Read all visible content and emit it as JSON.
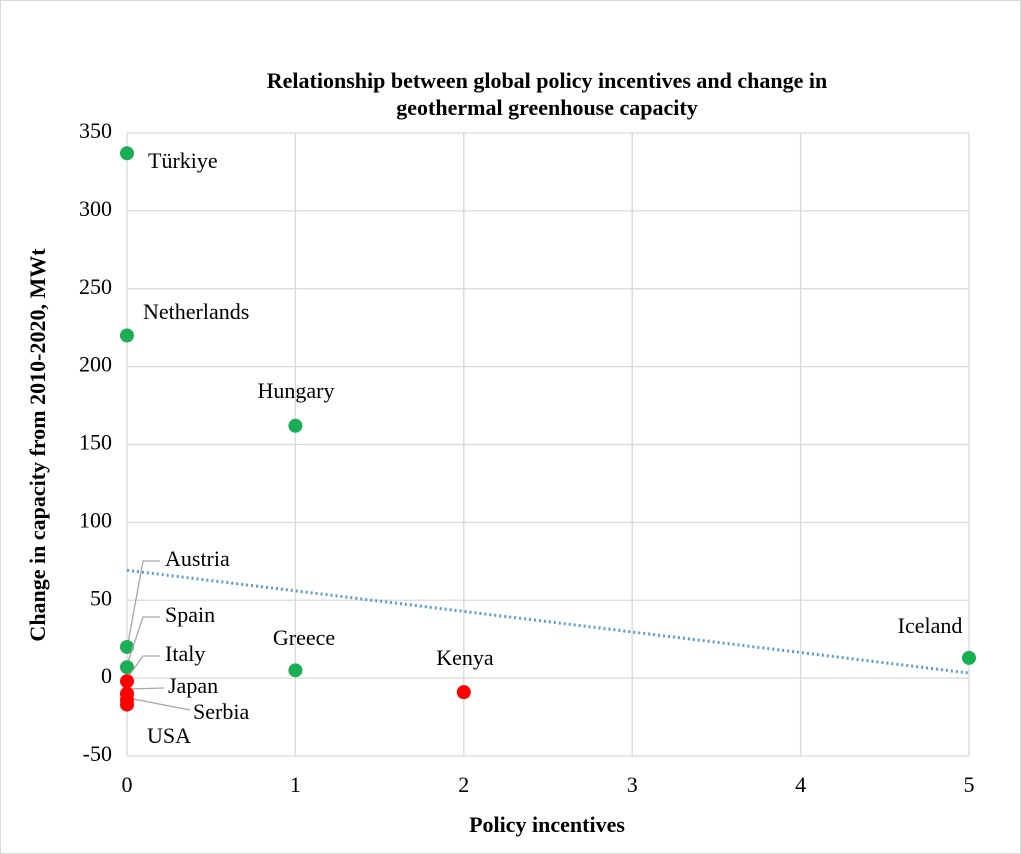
{
  "chart_data": {
    "type": "scatter",
    "title": "Relationship between global policy incentives and change in geothermal greenhouse capacity",
    "x_label": "Policy incentives",
    "y_label": "Change in capacity from 2010-2020, MWt",
    "labels": [
      "Türkiye",
      "Netherlands",
      "Hungary",
      "Austria",
      "Spain",
      "Italy",
      "Japan",
      "Serbia",
      "USA",
      "Greece",
      "Kenya",
      "Iceland"
    ],
    "x": [
      0,
      0,
      1,
      0,
      0,
      0,
      0,
      0,
      0,
      1,
      2,
      5
    ],
    "y": [
      337,
      220,
      162,
      20,
      7,
      -2,
      -10,
      -14,
      -17,
      5,
      -9,
      13
    ],
    "colors": [
      "#1aaf54",
      "#1aaf54",
      "#1aaf54",
      "#1aaf54",
      "#1aaf54",
      "#ff0000",
      "#ff0000",
      "#ff0000",
      "#ff0000",
      "#1aaf54",
      "#ff0000",
      "#1aaf54"
    ],
    "xlim": [
      0,
      5
    ],
    "xticks": [
      0,
      1,
      2,
      3,
      4,
      5
    ],
    "ylim": [
      -50,
      350
    ],
    "yticks": [
      -50,
      0,
      50,
      100,
      150,
      200,
      250,
      300,
      350
    ],
    "grid": true,
    "trendline": {
      "type": "linear",
      "color": "#5b9bd5"
    }
  }
}
